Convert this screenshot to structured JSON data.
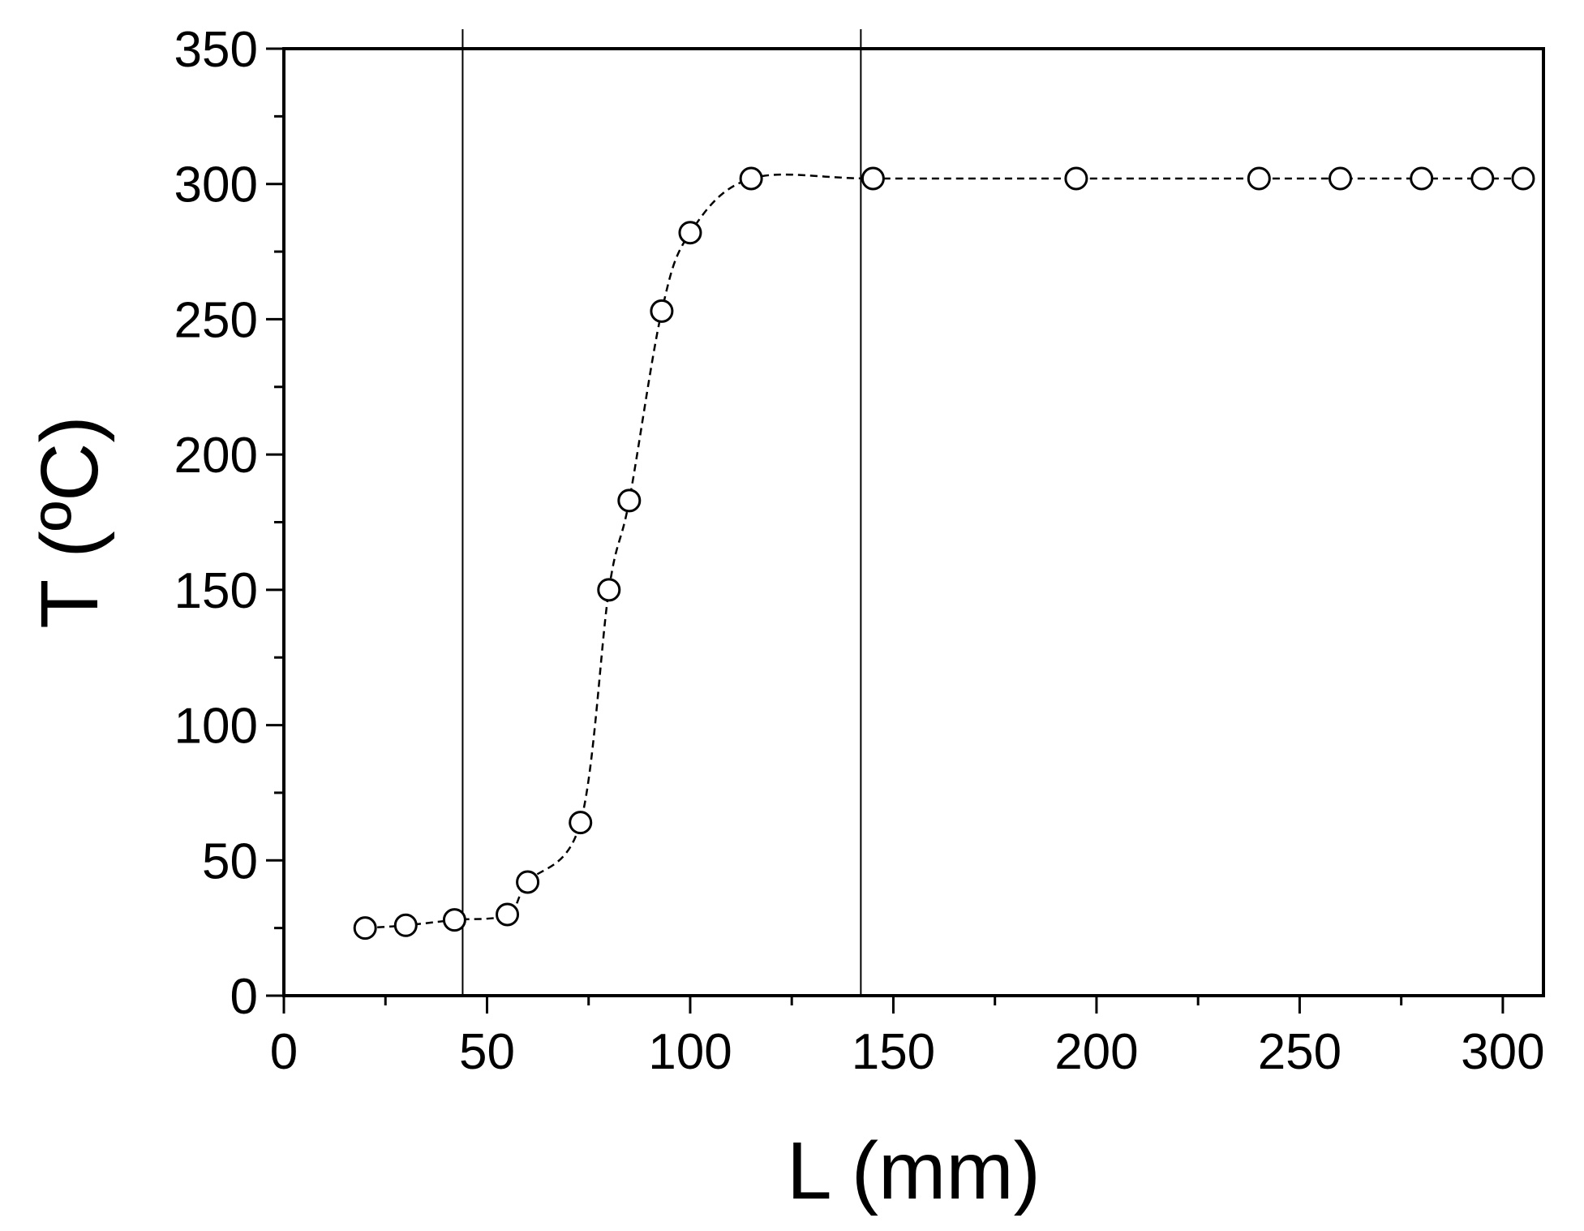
{
  "chart_data": {
    "type": "scatter",
    "xlabel": "L (mm)",
    "ylabel": "T (ºC)",
    "xlim": [
      0,
      310
    ],
    "ylim": [
      0,
      350
    ],
    "xticks": [
      "0",
      "50",
      "100",
      "150",
      "200",
      "250",
      "300"
    ],
    "yticks": [
      "0",
      "50",
      "100",
      "150",
      "200",
      "250",
      "300",
      "350"
    ],
    "grid": false,
    "legend": "none",
    "vertical_lines": [
      44,
      142
    ],
    "series": [
      {
        "marker": "open-circle",
        "line": "dashed-smooth",
        "x": [
          20,
          30,
          42,
          55,
          60,
          73,
          80,
          85,
          93,
          100,
          115,
          145,
          195,
          240,
          260,
          280,
          295,
          305
        ],
        "y": [
          25,
          26,
          28,
          30,
          42,
          64,
          150,
          183,
          253,
          282,
          302,
          302,
          302,
          302,
          302,
          302,
          302,
          302
        ]
      }
    ],
    "colors": {
      "axis": "#000000",
      "marker_fill": "#ffffff",
      "marker_stroke": "#000000"
    }
  }
}
